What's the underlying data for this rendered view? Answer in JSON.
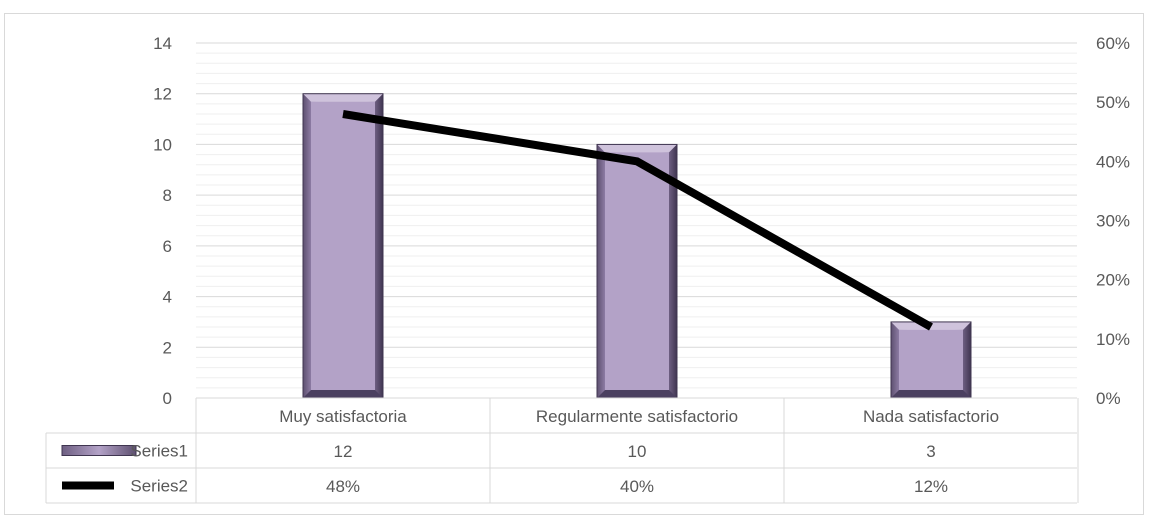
{
  "chart_data": {
    "type": "bar",
    "categories": [
      "Muy satisfactoria",
      "Regularmente satisfactorio",
      "Nada satisfactorio"
    ],
    "series": [
      {
        "name": "Series1",
        "type": "bar",
        "axis": "left",
        "values": [
          12,
          10,
          3
        ],
        "labels": [
          "12",
          "10",
          "3"
        ],
        "color": "#b3a2c7"
      },
      {
        "name": "Series2",
        "type": "line",
        "axis": "right",
        "values": [
          0.48,
          0.4,
          0.12
        ],
        "labels": [
          "48%",
          "40%",
          "12%"
        ],
        "color": "#000000"
      }
    ],
    "left_axis": {
      "min": 0,
      "max": 14,
      "step": 2,
      "tick_labels": [
        "0",
        "2",
        "4",
        "6",
        "8",
        "10",
        "12",
        "14"
      ]
    },
    "right_axis": {
      "min": 0,
      "max": 0.6,
      "step": 0.1,
      "tick_labels": [
        "0%",
        "10%",
        "20%",
        "30%",
        "40%",
        "50%",
        "60%"
      ]
    },
    "grid": true,
    "data_table": true,
    "legend": "data-table keys"
  }
}
